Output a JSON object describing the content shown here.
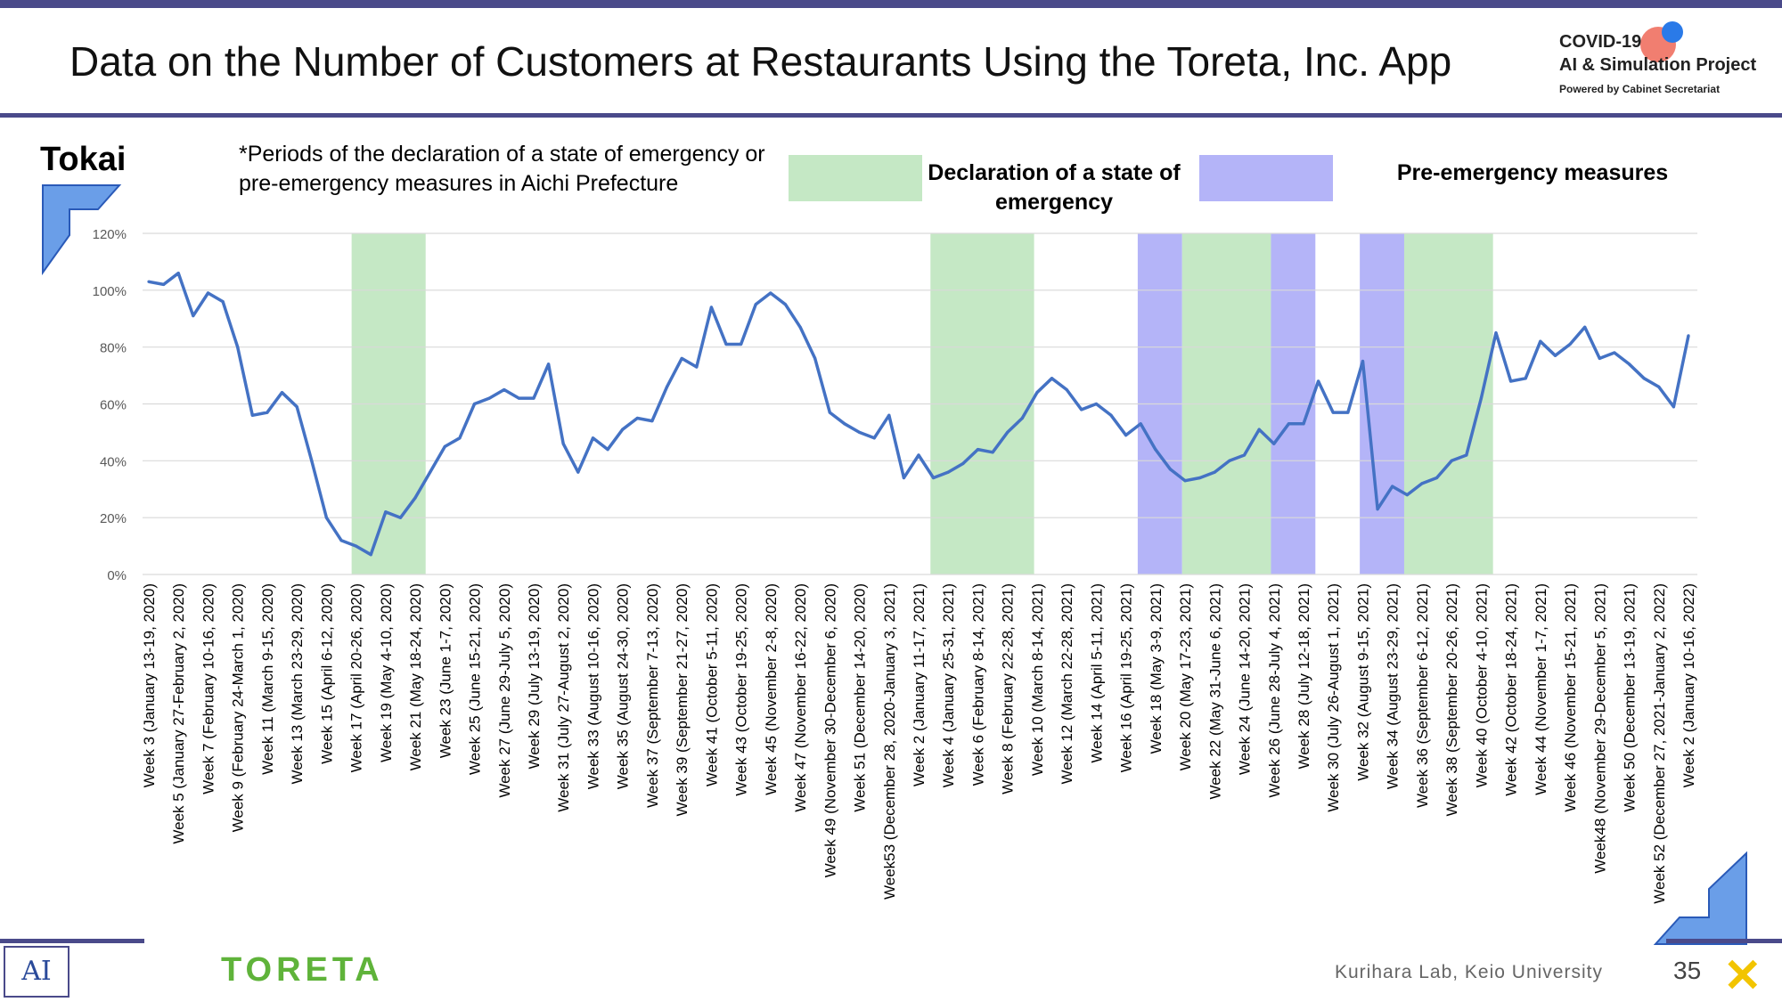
{
  "slide": {
    "title": "Data on the Number of Customers at Restaurants Using the Toreta, Inc. App",
    "region": "Tokai",
    "note": "*Periods of the declaration of a state of emergency or pre-emergency measures in Aichi Prefecture",
    "logo": {
      "line1": "COVID-19",
      "line2": "AI & Simulation Project",
      "line3": "Powered by Cabinet Secretariat"
    },
    "footer": {
      "brand": "TORETA",
      "credit": "Kurihara Lab, Keio University",
      "page": "35",
      "ai_logo": "AI"
    },
    "colors": {
      "rule": "#4a4a8a",
      "line": "#4472c4",
      "emergency": "#c5e8c5",
      "pre_emergency": "#b4b4f8",
      "toreta": "#5fb33a"
    }
  },
  "chart_data": {
    "type": "line",
    "title": "",
    "xlabel": "",
    "ylabel": "",
    "ylim": [
      0,
      120
    ],
    "yticks": [
      "0%",
      "20%",
      "40%",
      "60%",
      "80%",
      "100%",
      "120%"
    ],
    "grid": true,
    "legend": [
      {
        "label": "Declaration of a state of emergency",
        "color": "#c5e8c5"
      },
      {
        "label": "Pre-emergency measures",
        "color": "#b4b4f8"
      }
    ],
    "shaded_periods": [
      {
        "type": "emergency",
        "from": 13.7,
        "to": 18.7
      },
      {
        "type": "emergency",
        "from": 52.8,
        "to": 59.8
      },
      {
        "type": "pre_emergency",
        "from": 66.8,
        "to": 69.8
      },
      {
        "type": "emergency",
        "from": 69.8,
        "to": 75.8
      },
      {
        "type": "pre_emergency",
        "from": 75.8,
        "to": 78.8
      },
      {
        "type": "pre_emergency",
        "from": 81.8,
        "to": 84.8
      },
      {
        "type": "emergency",
        "from": 84.8,
        "to": 90.8
      }
    ],
    "tick_labels": [
      "Week 3 (January 13-19, 2020)",
      "Week 5 (January 27-February 2, 2020)",
      "Week 7 (February 10-16, 2020)",
      "Week 9 (February 24-March 1, 2020)",
      "Week 11 (March 9-15, 2020)",
      "Week 13 (March 23-29, 2020)",
      "Week 15 (April 6-12, 2020)",
      "Week 17 (April 20-26, 2020)",
      "Week 19 (May 4-10, 2020)",
      "Week 21 (May 18-24, 2020)",
      "Week 23 (June 1-7, 2020)",
      "Week 25 (June 15-21, 2020)",
      "Week 27 (June 29-July 5, 2020)",
      "Week 29 (July 13-19, 2020)",
      "Week 31 (July 27-August 2, 2020)",
      "Week 33 (August 10-16, 2020)",
      "Week 35 (August 24-30, 2020)",
      "Week 37 (September 7-13, 2020)",
      "Week 39 (September 21-27, 2020)",
      "Week 41 (October 5-11, 2020)",
      "Week 43 (October 19-25, 2020)",
      "Week 45 (November 2-8, 2020)",
      "Week 47 (November 16-22, 2020)",
      "Week 49 (November 30-December 6, 2020)",
      "Week 51 (December 14-20, 2020)",
      "Week53 (December 28, 2020-January 3, 2021)",
      "Week 2 (January 11-17, 2021)",
      "Week 4 (January 25-31, 2021)",
      "Week 6 (February 8-14, 2021)",
      "Week 8 (February 22-28, 2021)",
      "Week 10 (March 8-14, 2021)",
      "Week 12 (March 22-28, 2021)",
      "Week 14 (April 5-11, 2021)",
      "Week 16 (April 19-25, 2021)",
      "Week 18 (May 3-9, 2021)",
      "Week 20 (May 17-23, 2021)",
      "Week 22 (May 31-June 6, 2021)",
      "Week 24 (June 14-20, 2021)",
      "Week 26 (June 28-July 4, 2021)",
      "Week 28 (July 12-18, 2021)",
      "Week 30 (July 26-August 1, 2021)",
      "Week 32 (August 9-15, 2021)",
      "Week 34 (August 23-29, 2021)",
      "Week 36 (September 6-12, 2021)",
      "Week 38 (September 20-26, 2021)",
      "Week 40 (October 4-10, 2021)",
      "Week 42 (October 18-24, 2021)",
      "Week 44 (November 1-7, 2021)",
      "Week 46 (November 15-21, 2021)",
      "Week48 (November 29-December 5, 2021)",
      "Week 50 (December 13-19, 2021)",
      "Week 52 (December 27, 2021-January 2, 2022)",
      "Week 2 (January 10-16, 2022)"
    ],
    "series": [
      {
        "values": [
          103,
          102,
          106,
          91,
          99,
          96,
          80,
          56,
          57,
          64,
          59,
          40,
          20,
          12,
          10,
          7,
          22,
          20,
          27,
          36,
          45,
          48,
          60,
          62,
          65,
          62,
          62,
          74,
          46,
          36,
          48,
          44,
          51,
          55,
          54,
          66,
          76,
          73,
          94,
          81,
          81,
          95,
          99,
          95,
          87,
          76,
          57,
          53,
          50,
          48,
          56,
          34,
          42,
          34,
          36,
          39,
          44,
          43,
          50,
          55,
          64,
          69,
          65,
          58,
          60,
          56,
          49,
          53,
          44,
          37,
          33,
          34,
          36,
          40,
          42,
          51,
          46,
          53,
          53,
          68,
          57,
          57,
          75,
          23,
          31,
          28,
          32,
          34,
          40,
          42,
          62,
          85,
          68,
          69,
          82,
          77,
          81,
          87,
          76,
          78,
          74,
          69,
          66,
          59,
          84
        ]
      }
    ]
  }
}
